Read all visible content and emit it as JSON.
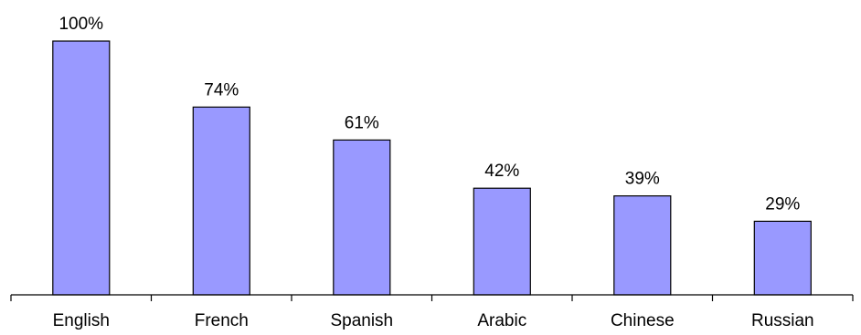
{
  "chart_data": {
    "type": "bar",
    "categories": [
      "English",
      "French",
      "Spanish",
      "Arabic",
      "Chinese",
      "Russian"
    ],
    "values": [
      100,
      74,
      61,
      42,
      39,
      29
    ],
    "data_labels": [
      "100%",
      "74%",
      "61%",
      "42%",
      "39%",
      "29%"
    ],
    "ylim": [
      0,
      100
    ],
    "grid": false,
    "legend": "none",
    "bar_color": "#9999FF",
    "bar_edge_color": "#000000"
  }
}
